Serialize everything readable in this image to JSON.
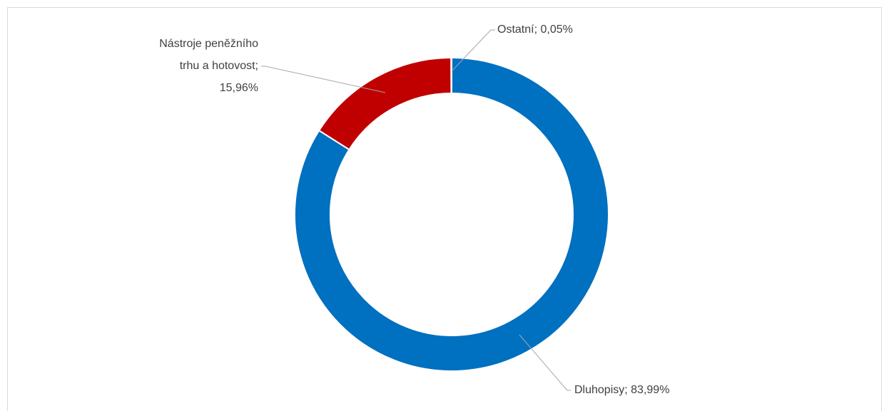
{
  "chart_data": {
    "type": "donut",
    "values": [
      83.99,
      15.96,
      0.05
    ],
    "value_labels": [
      [
        "Dluhopisy; 83,99%"
      ],
      [
        "Nástroje peněžního",
        "trhu a hotovost;",
        "15,96%"
      ],
      [
        "Ostatní; 0,05%"
      ]
    ],
    "colors": [
      "#0070c0",
      "#c00000",
      "#a5a5a5"
    ]
  }
}
